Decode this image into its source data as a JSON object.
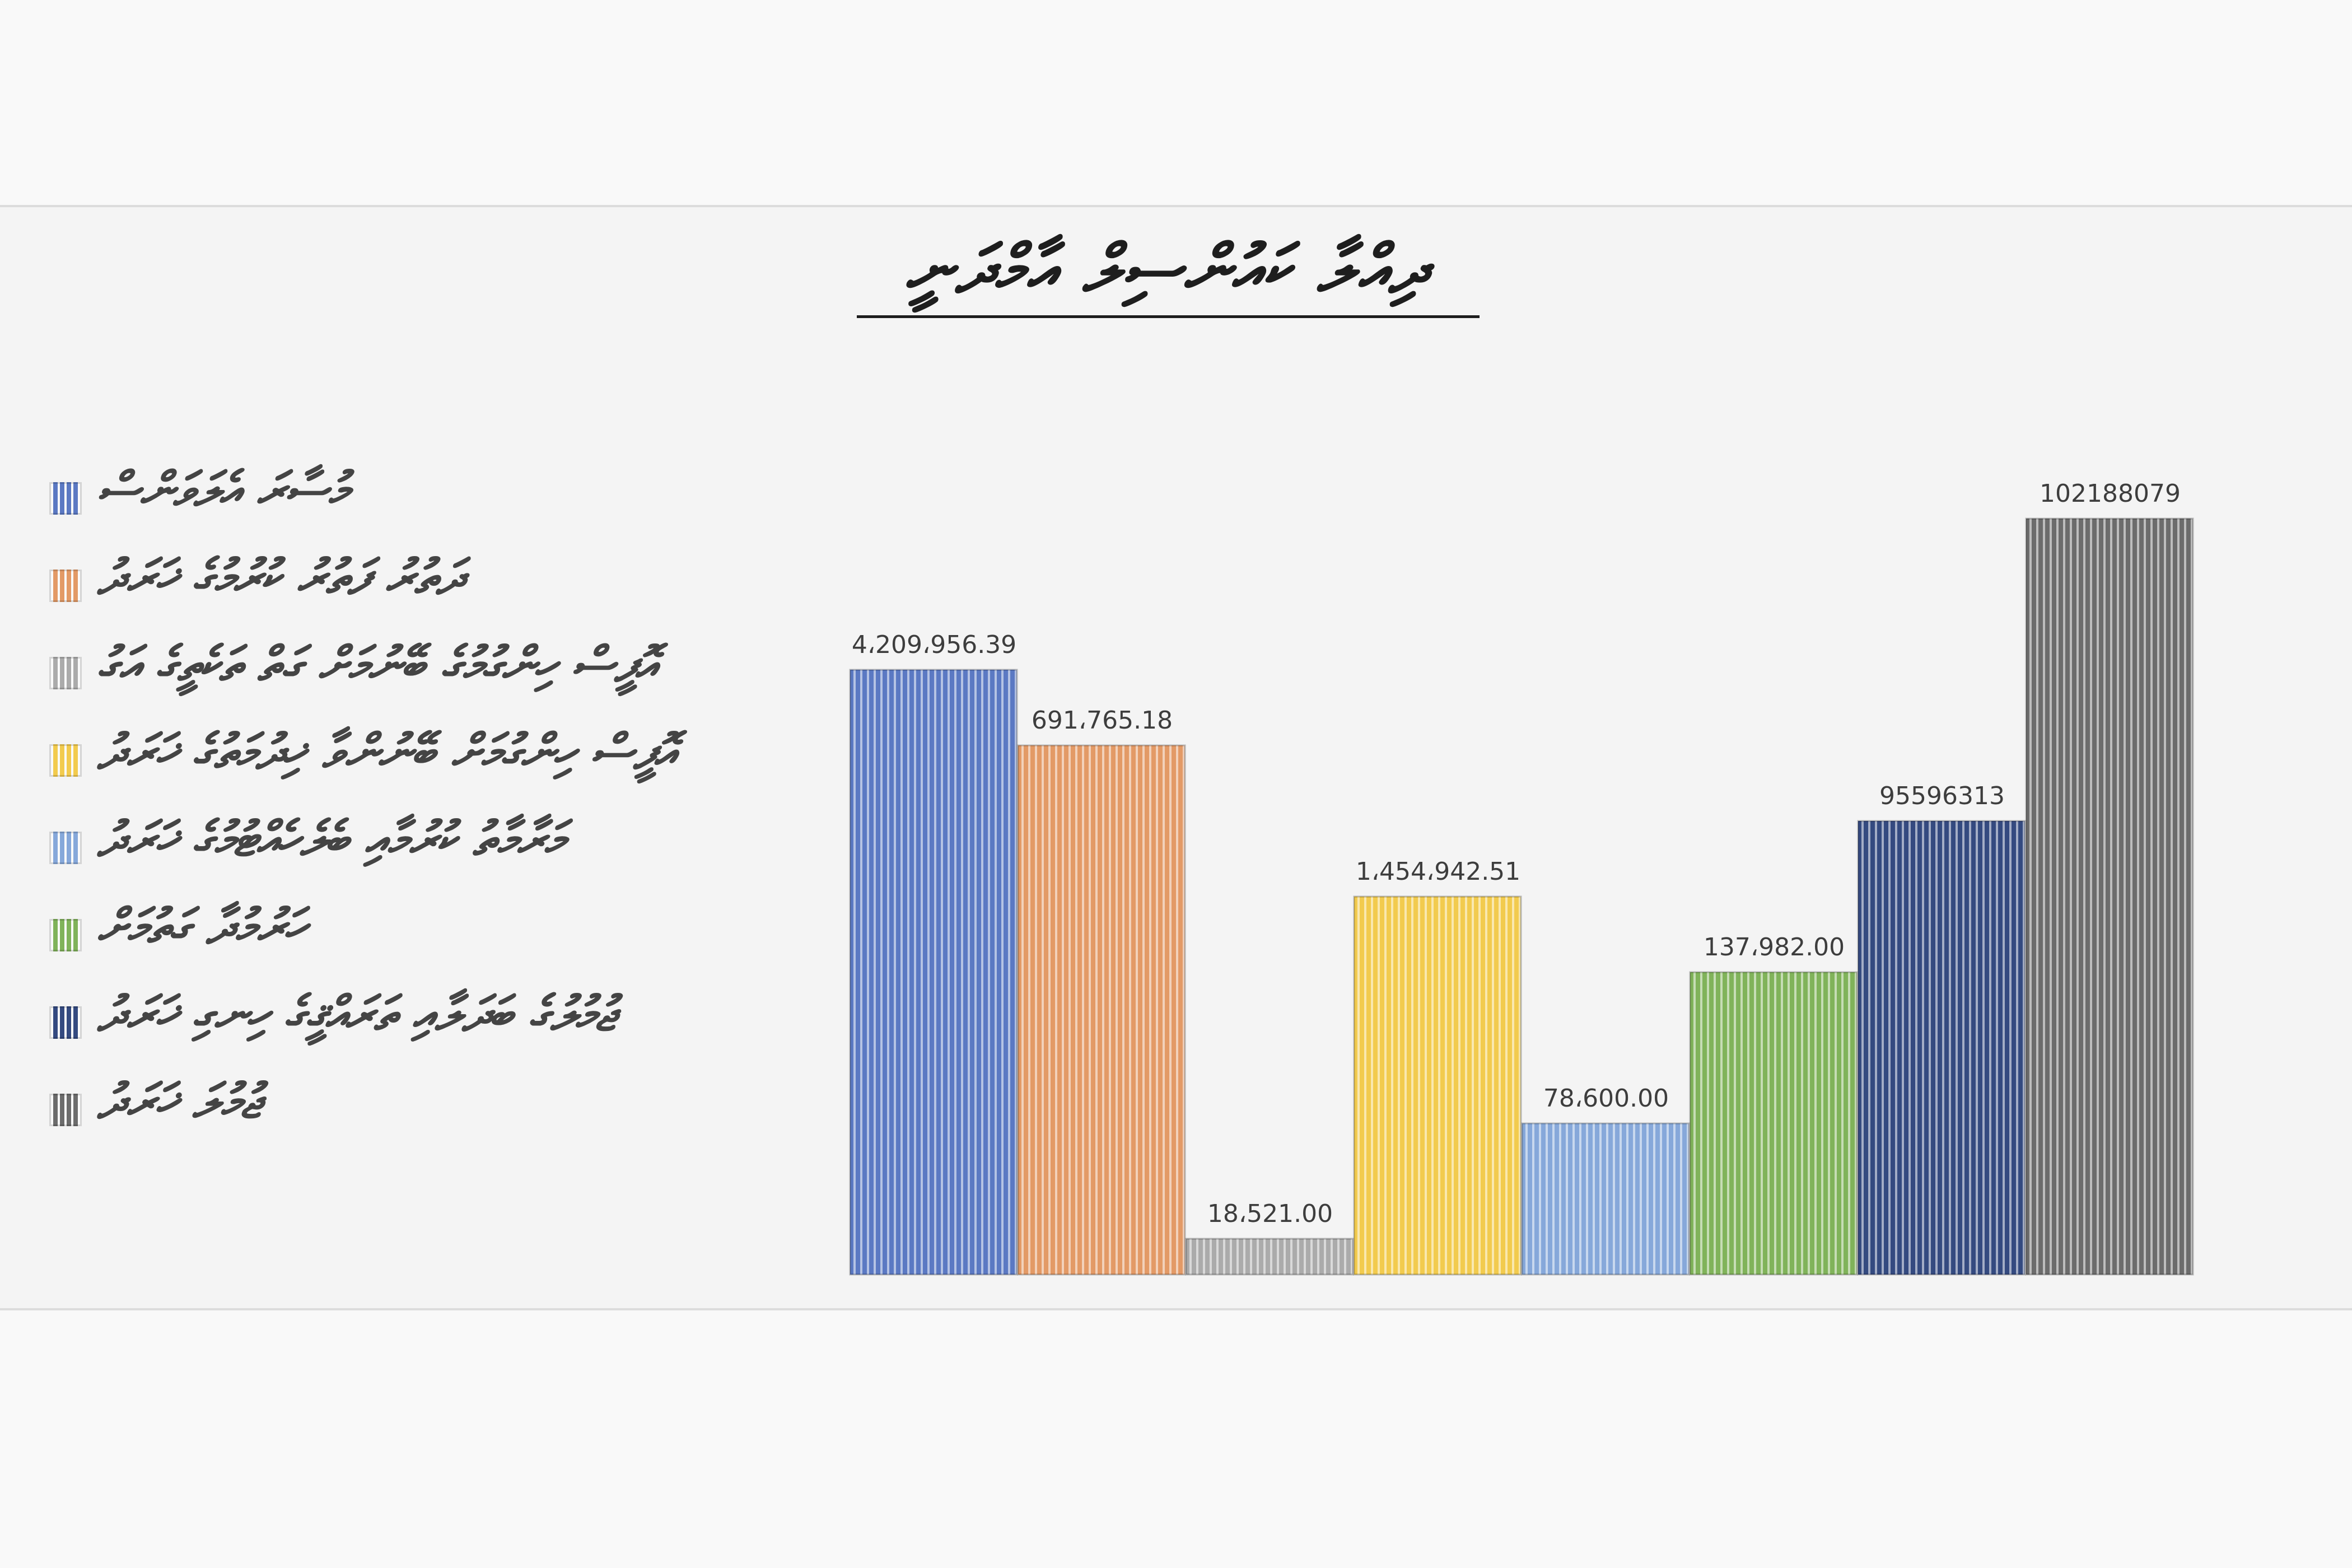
{
  "chart_data": {
    "type": "bar",
    "title": "ދިއްލާ ކައުންސިލް އާމްދަނީ",
    "xlabel": "",
    "ylabel": "",
    "ylim": [
      0,
      110000000
    ],
    "grid": false,
    "legend_position": "left",
    "categories": [
      "މުސާރަ އެލަވަންސް",
      "ދަތުރު ފަތުރު ކުރުމުގެ ޚަރަދު",
      "އޮފީސް ހިންގުމުގެ ބޭނުމަށް ގަތް ތަކެތީގެ އަގު",
      "އޮފީސް ހިންގުމަށް ބޭނުންވާ ޚިދުމަތުގެ ޚަރަދު",
      "މަރާމާތު ކުރުމާއި ބެލެހެއްޓުމުގެ ޚަރަދު",
      "ހަރުމުދާ ގަތުމަށް",
      "ޖުމުލުގެ ބަދަލާއި ތަރައްޤީގެ ހިނގި ޚަރަދު",
      "ޖުމުލަ ޚަރަދު"
    ],
    "values": [
      4209956.39,
      691765.18,
      18521.0,
      1454942.51,
      78600.0,
      137982.0,
      95596313,
      102188079
    ],
    "data_labels": [
      "4،209،956.39",
      "691،765.18",
      "18،521.00",
      "1،454،942.51",
      "78،600.00",
      "137،982.00",
      "95596313",
      "102188079"
    ],
    "colors": [
      "#5b79c3",
      "#e39a66",
      "#ababab",
      "#f2cb4e",
      "#86a8da",
      "#80b35a",
      "#344a80",
      "#6c6c6c"
    ]
  }
}
